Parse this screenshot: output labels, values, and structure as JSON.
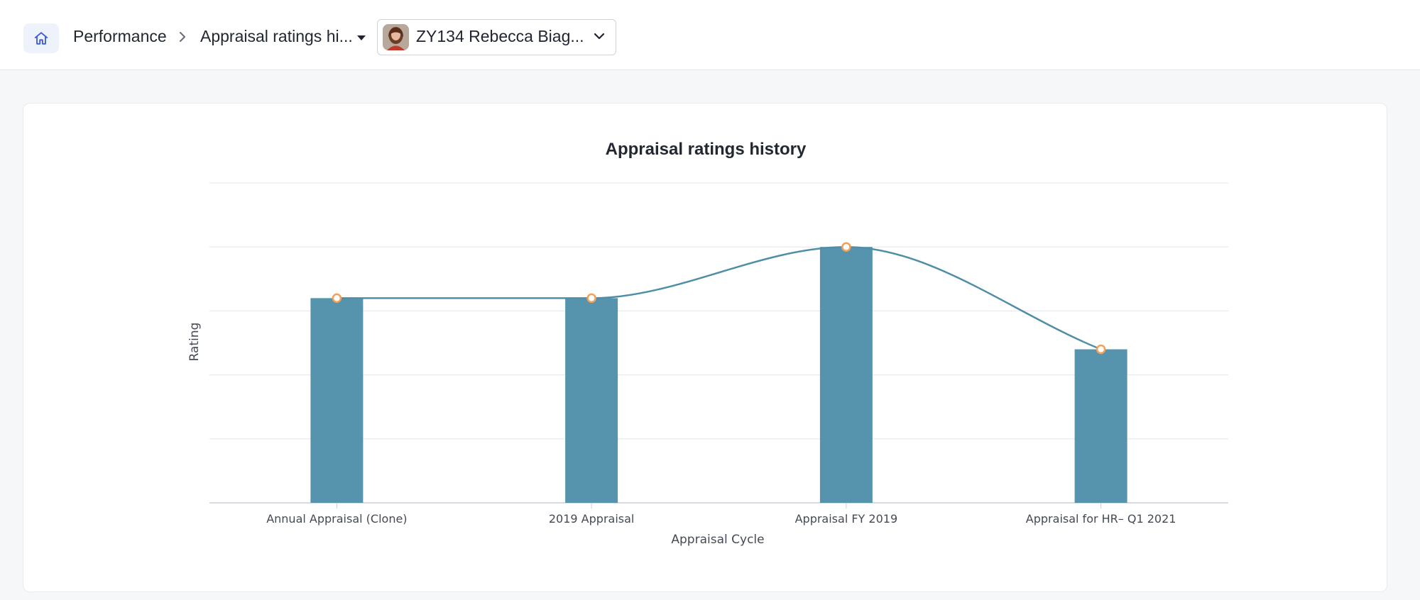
{
  "breadcrumb": {
    "root": "Performance",
    "current": "Appraisal ratings hi..."
  },
  "employee_selector": {
    "value": "ZY134 Rebecca Biag..."
  },
  "icons": {
    "home": "home-icon",
    "separator": "chevron-right-icon",
    "menu": "caret-down-icon",
    "select": "chevron-down-icon"
  },
  "colors": {
    "bar": "#5694ad",
    "line": "#4f8ea6",
    "point_stroke": "#f0a15c",
    "grid": "#e4e6ea"
  },
  "chart_data": {
    "type": "bar",
    "title": "Appraisal ratings history",
    "xlabel": "Appraisal Cycle",
    "ylabel": "Rating",
    "categories": [
      "Annual Appraisal (Clone)",
      "2019 Appraisal",
      "Appraisal FY 2019",
      "Appraisal for HR– Q1 2021"
    ],
    "values": [
      3.2,
      3.2,
      4.0,
      2.4
    ],
    "overlay": "spline",
    "ylim": [
      0,
      5
    ],
    "grid": true,
    "legend": "none"
  }
}
